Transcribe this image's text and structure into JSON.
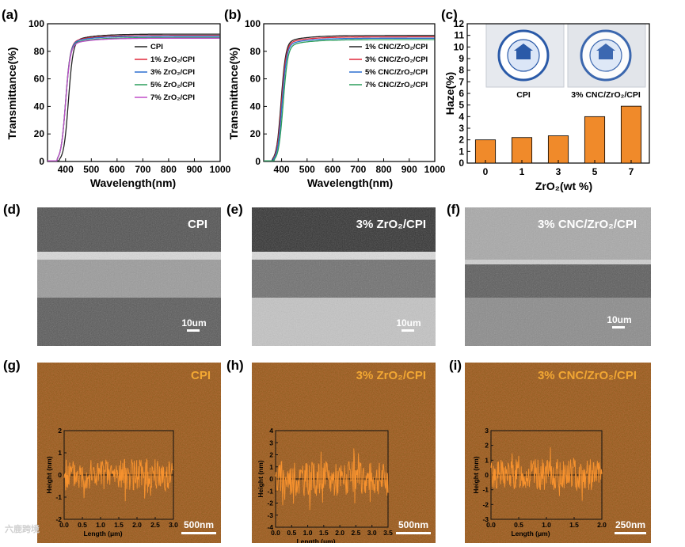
{
  "panels": {
    "a": {
      "label": "(a)"
    },
    "b": {
      "label": "(b)"
    },
    "c": {
      "label": "(c)"
    },
    "d": {
      "label": "(d)"
    },
    "e": {
      "label": "(e)"
    },
    "f": {
      "label": "(f)"
    },
    "g": {
      "label": "(g)"
    },
    "h": {
      "label": "(h)"
    },
    "i": {
      "label": "(i)"
    }
  },
  "sem": {
    "d": {
      "title": "CPI",
      "scale": "10um"
    },
    "e": {
      "title": "3% ZrO₂/CPI",
      "scale": "10um"
    },
    "f": {
      "title": "3% CNC/ZrO₂/CPI",
      "scale": "10um"
    }
  },
  "afm": {
    "g": {
      "title": "CPI",
      "scale": "500nm"
    },
    "h": {
      "title": "3% ZrO₂/CPI",
      "scale": "500nm"
    },
    "i": {
      "title": "3% CNC/ZrO₂/CPI",
      "scale": "250nm"
    }
  },
  "photos": {
    "left_caption": "CPI",
    "right_caption": "3% CNC/ZrO₂/CPI"
  },
  "watermark": "六鹿跨境",
  "chart_data": [
    {
      "id": "a",
      "type": "line",
      "xlabel": "Wavelength(nm)",
      "ylabel": "Transmittance(%)",
      "xlim": [
        330,
        1000
      ],
      "ylim": [
        0,
        100
      ],
      "xticks": [
        400,
        500,
        600,
        700,
        800,
        900,
        1000
      ],
      "yticks": [
        0,
        20,
        40,
        60,
        80,
        100
      ],
      "series": [
        {
          "name": "CPI",
          "color": "#222222",
          "cut": 383,
          "plateau": 92.5
        },
        {
          "name": "1% ZrO₂/CPI",
          "color": "#e0283a",
          "cut": 372,
          "plateau": 91.5
        },
        {
          "name": "3% ZrO₂/CPI",
          "color": "#2c6fd0",
          "cut": 372,
          "plateau": 91.0
        },
        {
          "name": "5% ZrO₂/CPI",
          "color": "#2a9d5a",
          "cut": 372,
          "plateau": 90.0
        },
        {
          "name": "7% ZrO₂/CPI",
          "color": "#c04ec8",
          "cut": 372,
          "plateau": 89.5
        }
      ]
    },
    {
      "id": "b",
      "type": "line",
      "xlabel": "Wavelength(nm)",
      "ylabel": "Transmittance(%)",
      "xlim": [
        330,
        1000
      ],
      "ylim": [
        0,
        100
      ],
      "xticks": [
        400,
        500,
        600,
        700,
        800,
        900,
        1000
      ],
      "yticks": [
        0,
        20,
        40,
        60,
        80,
        100
      ],
      "series": [
        {
          "name": "1% CNC/ZrO₂/CPI",
          "color": "#222222",
          "cut": 370,
          "plateau": 91.5
        },
        {
          "name": "3% CNC/ZrO₂/CPI",
          "color": "#e0283a",
          "cut": 372,
          "plateau": 90.5
        },
        {
          "name": "5% CNC/ZrO₂/CPI",
          "color": "#2c6fd0",
          "cut": 374,
          "plateau": 89.5
        },
        {
          "name": "7% CNC/ZrO₂/CPI",
          "color": "#2a9d5a",
          "cut": 378,
          "plateau": 88.5
        }
      ]
    },
    {
      "id": "c",
      "type": "bar",
      "xlabel": "ZrO₂(wt %)",
      "ylabel": "Haze(%)",
      "categories": [
        "0",
        "1",
        "3",
        "5",
        "7"
      ],
      "values": [
        2.0,
        2.2,
        2.35,
        4.0,
        4.9
      ],
      "ylim": [
        0,
        12
      ],
      "yticks": [
        0,
        1,
        2,
        3,
        4,
        5,
        6,
        7,
        8,
        9,
        10,
        11,
        12
      ],
      "color": "#f08a2a"
    },
    {
      "id": "g",
      "type": "line",
      "xlabel": "Length (μm)",
      "ylabel": "Height (nm)",
      "xlim": [
        0,
        3.0
      ],
      "ylim": [
        -2,
        2
      ],
      "xticks": [
        0.0,
        0.5,
        1.0,
        1.5,
        2.0,
        2.5,
        3.0
      ],
      "yticks": [
        -2,
        -1,
        0,
        1,
        2
      ]
    },
    {
      "id": "h",
      "type": "line",
      "xlabel": "Length (μm)",
      "ylabel": "Height (nm)",
      "xlim": [
        0,
        3.5
      ],
      "ylim": [
        -4,
        4
      ],
      "xticks": [
        0.0,
        0.5,
        1.0,
        1.5,
        2.0,
        2.5,
        3.0,
        3.5
      ],
      "yticks": [
        -4,
        -3,
        -2,
        -1,
        0,
        1,
        2,
        3,
        4
      ]
    },
    {
      "id": "i",
      "type": "line",
      "xlabel": "Length (μm)",
      "ylabel": "Height (nm)",
      "xlim": [
        0,
        2.0
      ],
      "ylim": [
        -3,
        3
      ],
      "xticks": [
        0.0,
        0.5,
        1.0,
        1.5,
        2.0
      ],
      "yticks": [
        -3,
        -2,
        -1,
        0,
        1,
        2,
        3
      ]
    }
  ]
}
